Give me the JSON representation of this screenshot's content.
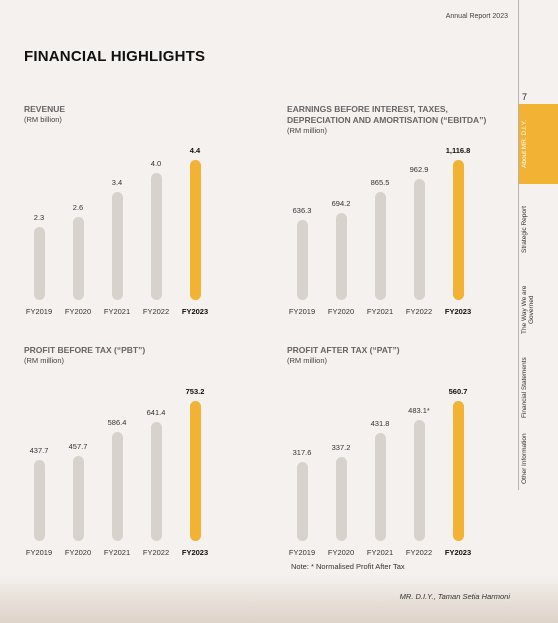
{
  "header": {
    "report": "Annual Report 2023",
    "title": "FINANCIAL HIGHLIGHTS",
    "page": "7"
  },
  "sidebar": {
    "tabs": [
      "About MR. D.I.Y.",
      "Strategic Report",
      "The Way We are Governed",
      "Financial Statements",
      "Other Information"
    ]
  },
  "chart_data": [
    {
      "type": "bar",
      "title": "REVENUE",
      "subtitle": "(RM billion)",
      "categories": [
        "FY2019",
        "FY2020",
        "FY2021",
        "FY2022",
        "FY2023"
      ],
      "values": [
        2.3,
        2.6,
        3.4,
        4.0,
        4.4
      ],
      "value_labels": [
        "2.3",
        "2.6",
        "3.4",
        "4.0",
        "4.4"
      ],
      "color": "#d8d2cc",
      "highlight_color": "#f2b233",
      "highlight": 4
    },
    {
      "type": "bar",
      "title": "EARNINGS BEFORE INTEREST, TAXES, DEPRECIATION AND AMORTISATION (“EBITDA”)",
      "subtitle": "(RM million)",
      "categories": [
        "FY2019",
        "FY2020",
        "FY2021",
        "FY2022",
        "FY2023"
      ],
      "values": [
        636.3,
        694.2,
        865.5,
        962.9,
        1116.8
      ],
      "value_labels": [
        "636.3",
        "694.2",
        "865.5",
        "962.9",
        "1,116.8"
      ],
      "color": "#d8d2cc",
      "highlight_color": "#f2b233",
      "highlight": 4
    },
    {
      "type": "bar",
      "title": "PROFIT BEFORE TAX (“PBT”)",
      "subtitle": "(RM million)",
      "categories": [
        "FY2019",
        "FY2020",
        "FY2021",
        "FY2022",
        "FY2023"
      ],
      "values": [
        437.7,
        457.7,
        586.4,
        641.4,
        753.2
      ],
      "color": "#d8d2cc",
      "highlight_color": "#f2b233",
      "highlight": 4
    },
    {
      "type": "bar",
      "title": "PROFIT AFTER TAX (“PAT”)",
      "subtitle": "(RM million)",
      "categories": [
        "FY2019",
        "FY2020",
        "FY2021",
        "FY2022",
        "FY2023"
      ],
      "values": [
        317.6,
        337.2,
        431.8,
        483.1,
        560.7
      ],
      "value_labels": [
        "317.6",
        "337.2",
        "431.8",
        "483.1*",
        "560.7"
      ],
      "color": "#d8d2cc",
      "highlight_color": "#f2b233",
      "highlight": 4
    }
  ],
  "note": "Note: * Normalised Profit After Tax",
  "caption": "MR. D.I.Y., Taman Setia Harmoni"
}
